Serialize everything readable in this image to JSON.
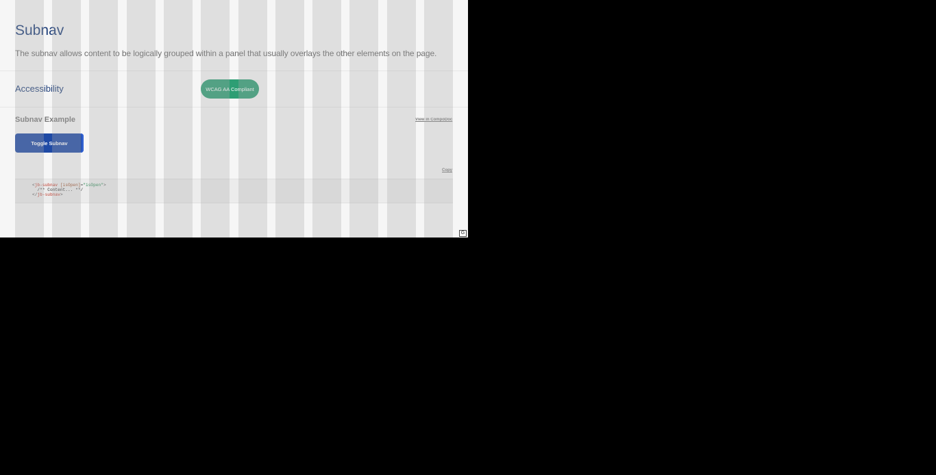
{
  "page": {
    "title": "Subnav",
    "description": "The subnav allows content to be logically grouped within a panel that usually overlays the other elements on the page."
  },
  "accessibility": {
    "label": "Accessibility",
    "badge": "WCAG AA Compliant"
  },
  "example": {
    "title": "Subnav Example",
    "compodoc_link": "View in CompoDoc",
    "toggle_button": "Toggle Subnav",
    "copy_link": "Copy"
  },
  "code": {
    "line1": {
      "open": "<",
      "tag": "jb-subnav",
      "attr": " [isOpen]",
      "eq": "=",
      "value": "\"isOpen\"",
      "close": ">"
    },
    "line2": "  /** Content... **/",
    "line3": {
      "open": "</",
      "tag": "jb-subnav",
      "close": ">"
    }
  },
  "grid_overlay_button": "G",
  "colors": {
    "title": "#1f3f7a",
    "badge": "#2e9e74",
    "button": "#1f4aa5"
  }
}
